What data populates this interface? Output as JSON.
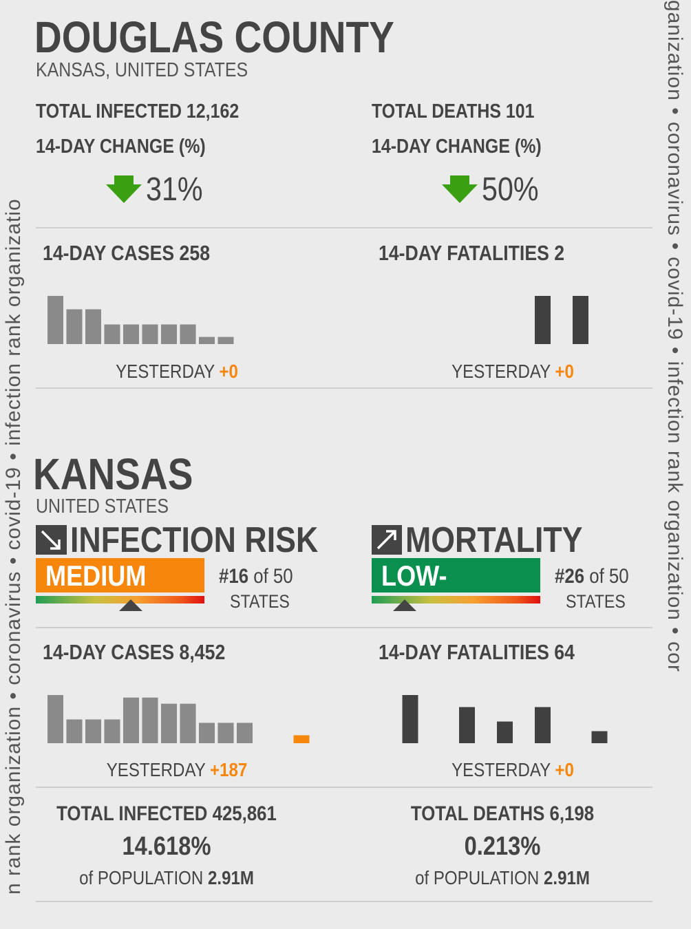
{
  "watermark": {
    "left": "n rank organization • coronavirus • covid-19 • infection rank organizatio",
    "right": "ganization • coronavirus • covid-19 • infection rank organization • cor"
  },
  "county": {
    "title": "DOUGLAS COUNTY",
    "subtitle": "KANSAS, UNITED STATES",
    "infected": {
      "label": "TOTAL INFECTED 12,162",
      "change_label": "14-DAY CHANGE (%)",
      "change": "31%"
    },
    "deaths": {
      "label": "TOTAL DEATHS 101",
      "change_label": "14-DAY CHANGE (%)",
      "change": "50%"
    },
    "cases_chart": {
      "title": "14-DAY CASES 258",
      "values": [
        54,
        39,
        39,
        22,
        22,
        22,
        22,
        22,
        8,
        8,
        0,
        0,
        0,
        0
      ],
      "color": "#8a8a8a",
      "yesterday_label": "YESTERDAY",
      "yesterday": "+0"
    },
    "fatalities_chart": {
      "title": "14-DAY FATALITIES 2",
      "values": [
        0,
        0,
        0,
        0,
        0,
        0,
        0,
        0,
        1,
        0,
        1,
        0,
        0,
        0
      ],
      "color": "#404040",
      "yesterday_label": "YESTERDAY",
      "yesterday": "+0"
    }
  },
  "state": {
    "title": "KANSAS",
    "subtitle": "UNITED STATES",
    "risk": {
      "label": "INFECTION RISK",
      "level": "MEDIUM",
      "level_color": "#f7860d",
      "rank": "#16",
      "of": "of 50",
      "unit": "STATES"
    },
    "mortality": {
      "label": "MORTALITY",
      "level": "LOW-",
      "level_color": "#0a8f4f",
      "rank": "#26",
      "of": "of 50",
      "unit": "STATES"
    },
    "cases_chart": {
      "title": "14-DAY CASES 8,452",
      "values": [
        1135,
        560,
        560,
        560,
        1075,
        1075,
        930,
        930,
        480,
        480,
        480,
        0,
        0,
        187
      ],
      "color": "#8a8a8a",
      "latest_color": "#f7860d",
      "yesterday_label": "YESTERDAY",
      "yesterday": "+187"
    },
    "fatalities_chart": {
      "title": "14-DAY FATALITIES 64",
      "values": [
        0,
        20,
        0,
        0,
        15,
        0,
        9,
        0,
        15,
        0,
        0,
        5,
        0,
        0
      ],
      "color": "#404040",
      "yesterday_label": "YESTERDAY",
      "yesterday": "+0"
    },
    "infected": {
      "label": "TOTAL INFECTED 425,861",
      "percent": "14.618%",
      "population_label": "of POPULATION",
      "population": "2.91M"
    },
    "deaths": {
      "label": "TOTAL DEATHS 6,198",
      "percent": "0.213%",
      "population_label": "of POPULATION",
      "population": "2.91M"
    }
  }
}
